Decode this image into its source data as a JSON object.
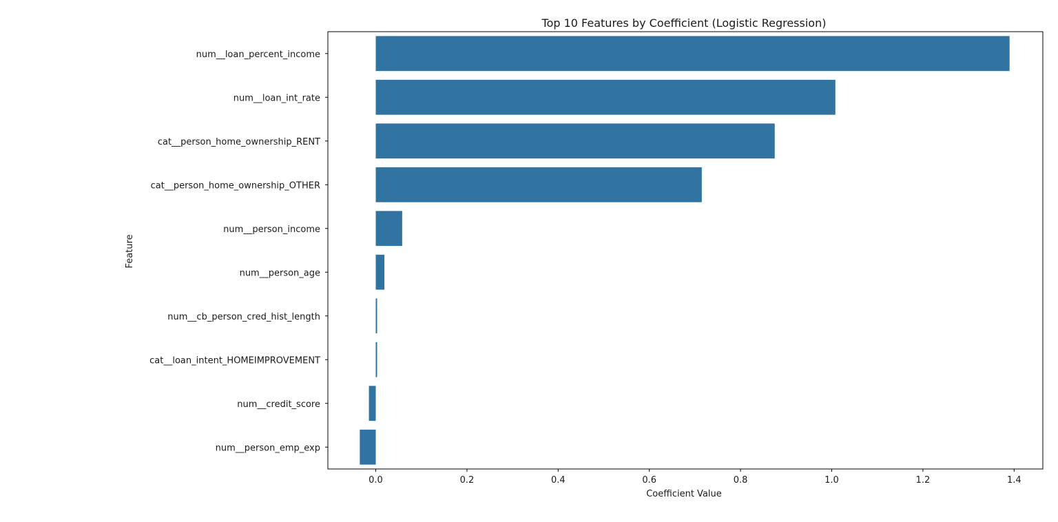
{
  "chart_data": {
    "type": "bar",
    "orientation": "horizontal",
    "title": "Top 10 Features by Coefficient (Logistic Regression)",
    "xlabel": "Coefficient Value",
    "ylabel": "Feature",
    "categories": [
      "num__loan_percent_income",
      "num__loan_int_rate",
      "cat__person_home_ownership_RENT",
      "cat__person_home_ownership_OTHER",
      "num__person_income",
      "num__person_age",
      "num__cb_person_cred_hist_length",
      "cat__loan_intent_HOMEIMPROVEMENT",
      "num__credit_score",
      "num__person_emp_exp"
    ],
    "values": [
      1.39,
      1.008,
      0.875,
      0.715,
      0.058,
      0.019,
      0.003,
      0.003,
      -0.015,
      -0.035
    ],
    "xlim": [
      -0.105,
      1.463
    ],
    "xticks": [
      0.0,
      0.2,
      0.4,
      0.6,
      0.8,
      1.0,
      1.2,
      1.4
    ],
    "xtick_labels": [
      "0.0",
      "0.2",
      "0.4",
      "0.6",
      "0.8",
      "1.0",
      "1.2",
      "1.4"
    ],
    "grid": false,
    "colors": {
      "bar": "#3274a1",
      "axis": "#000000",
      "text": "#1a1a1a"
    }
  }
}
